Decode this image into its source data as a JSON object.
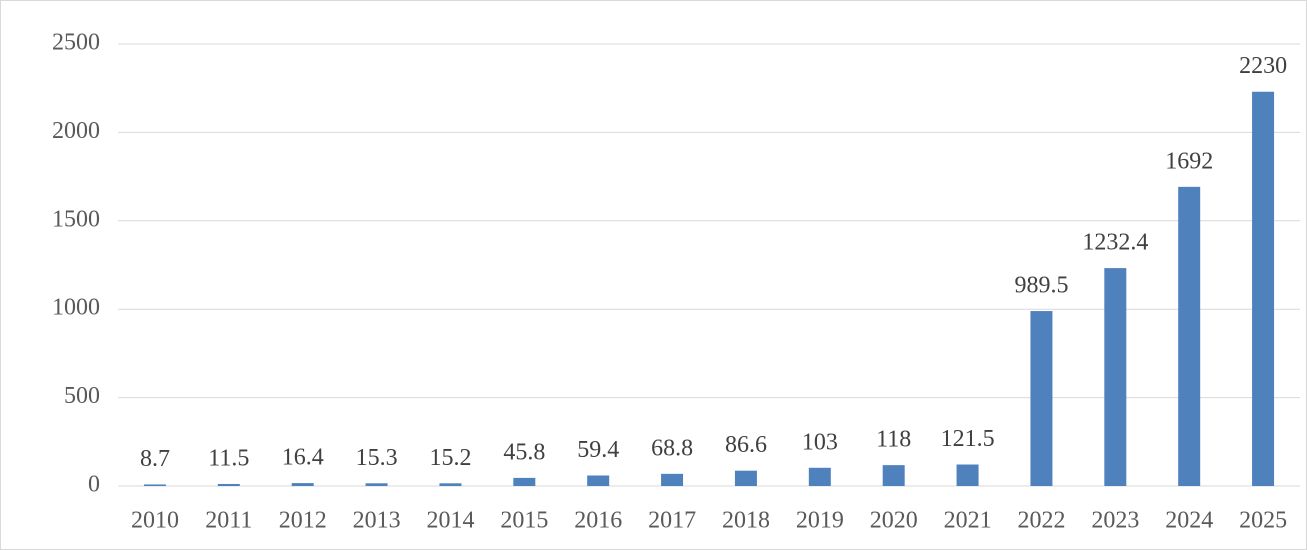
{
  "chart_data": {
    "type": "bar",
    "categories": [
      "2010",
      "2011",
      "2012",
      "2013",
      "2014",
      "2015",
      "2016",
      "2017",
      "2018",
      "2019",
      "2020",
      "2021",
      "2022",
      "2023",
      "2024",
      "2025"
    ],
    "values": [
      8.7,
      11.5,
      16.4,
      15.3,
      15.2,
      45.8,
      59.4,
      68.8,
      86.6,
      103,
      118,
      121.5,
      989.5,
      1232.4,
      1692,
      2230
    ],
    "color": "#4f81bd",
    "ylim": [
      0,
      2500
    ],
    "yticks": [
      0,
      500,
      1000,
      1500,
      2000,
      2500
    ],
    "grid": true
  }
}
